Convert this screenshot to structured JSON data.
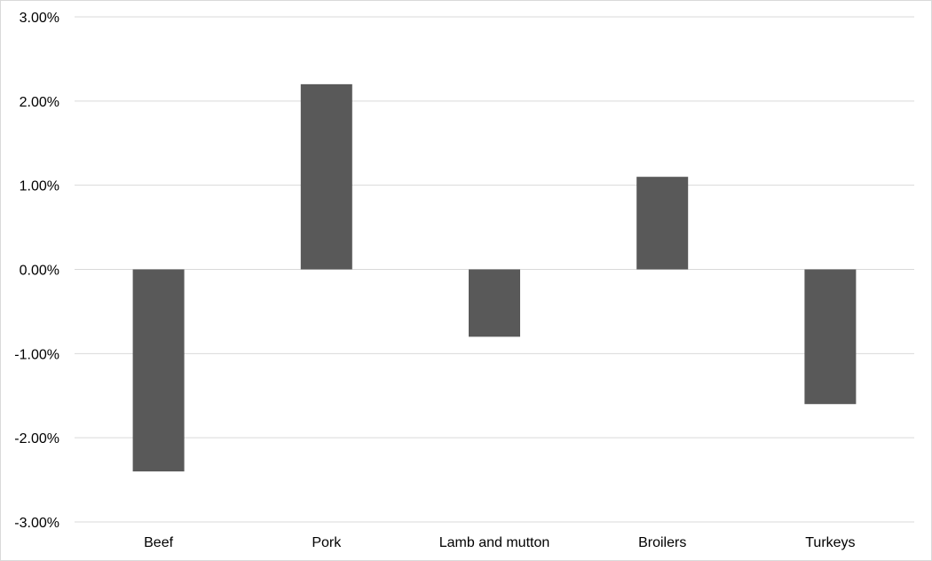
{
  "chart_data": {
    "type": "bar",
    "title": "",
    "xlabel": "",
    "ylabel": "",
    "categories": [
      "Beef",
      "Pork",
      "Lamb and mutton",
      "Broilers",
      "Turkeys"
    ],
    "values": [
      -2.4,
      2.2,
      -0.8,
      1.1,
      -1.6
    ],
    "unit": "%",
    "ylim": [
      -3,
      3
    ],
    "yticks": [
      3,
      2,
      1,
      0,
      -1,
      -2,
      -3
    ],
    "ytick_labels": [
      "3.00%",
      "2.00%",
      "1.00%",
      "0.00%",
      "-1.00%",
      "-2.00%",
      "-3.00%"
    ],
    "grid": true,
    "legend": "none",
    "bar_color": "#595959",
    "grid_color": "#d9d9d9"
  }
}
